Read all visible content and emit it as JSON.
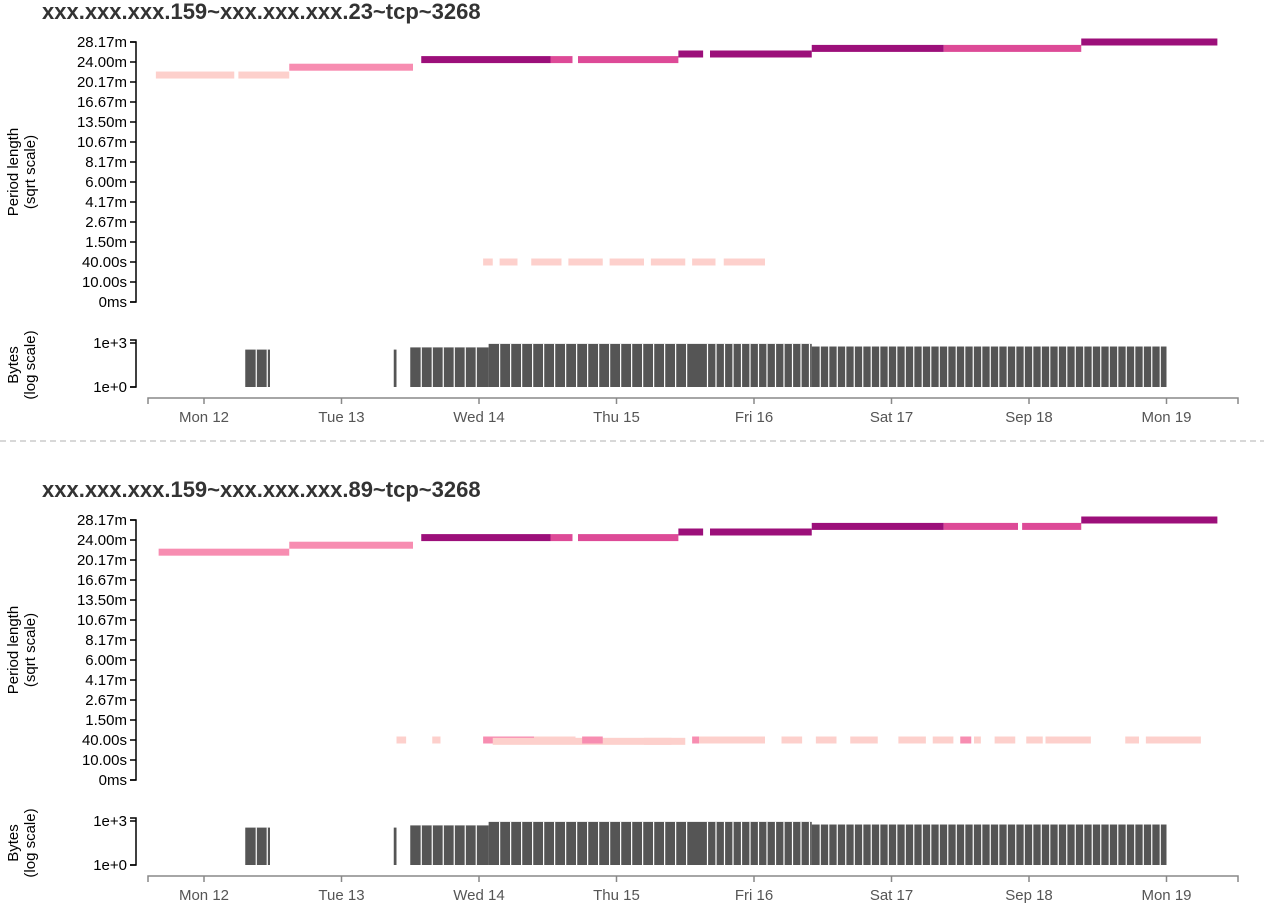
{
  "chart_data": [
    {
      "type": "timeline",
      "title": "xxx.xxx.xxx.159~xxx.xxx.xxx.23~tcp~3268",
      "period_axis": {
        "label_line1": "Period length",
        "label_line2": "(sqrt scale)",
        "scale": "sqrt",
        "ticks": [
          "0ms",
          "10.00s",
          "40.00s",
          "1.50m",
          "2.67m",
          "4.17m",
          "6.00m",
          "8.17m",
          "10.67m",
          "13.50m",
          "16.67m",
          "20.17m",
          "24.00m",
          "28.17m"
        ],
        "tick_seconds": [
          0,
          10,
          40,
          90,
          160,
          250,
          360,
          490,
          640,
          810,
          1000,
          1210,
          1440,
          1690
        ]
      },
      "bytes_axis": {
        "label_line1": "Bytes",
        "label_line2": "(log scale)",
        "scale": "log",
        "ticks": [
          "1e+0",
          "1e+3"
        ]
      },
      "time_axis": {
        "ticks": [
          "Mon 12",
          "Tue 13",
          "Wed 14",
          "Thu 15",
          "Fri 16",
          "Sat 17",
          "Sep 18",
          "Mon 19"
        ],
        "domain_days": [
          -0.55,
          7.4
        ]
      },
      "segments": [
        {
          "start": -0.35,
          "end": 0.22,
          "period_s": 1290,
          "color": "#fdd0cc"
        },
        {
          "start": 0.25,
          "end": 0.62,
          "period_s": 1290,
          "color": "#fdd0cc"
        },
        {
          "start": 0.62,
          "end": 1.52,
          "period_s": 1380,
          "color": "#f78db1"
        },
        {
          "start": 1.58,
          "end": 2.52,
          "period_s": 1470,
          "color": "#9c0f7a"
        },
        {
          "start": 2.52,
          "end": 2.68,
          "period_s": 1470,
          "color": "#dd4a97"
        },
        {
          "start": 2.72,
          "end": 3.45,
          "period_s": 1470,
          "color": "#dd4a97"
        },
        {
          "start": 3.45,
          "end": 3.63,
          "period_s": 1540,
          "color": "#9c0f7a"
        },
        {
          "start": 3.68,
          "end": 4.42,
          "period_s": 1540,
          "color": "#9c0f7a"
        },
        {
          "start": 4.42,
          "end": 5.38,
          "period_s": 1610,
          "color": "#9c0f7a"
        },
        {
          "start": 5.38,
          "end": 6.38,
          "period_s": 1610,
          "color": "#dd4a97"
        },
        {
          "start": 6.38,
          "end": 7.37,
          "period_s": 1690,
          "color": "#9c0f7a"
        },
        {
          "start": 2.03,
          "end": 2.1,
          "period_s": 40,
          "color": "#fdd0cc"
        },
        {
          "start": 2.15,
          "end": 2.28,
          "period_s": 40,
          "color": "#fdd0cc"
        },
        {
          "start": 2.38,
          "end": 2.6,
          "period_s": 40,
          "color": "#fdd0cc"
        },
        {
          "start": 2.65,
          "end": 2.9,
          "period_s": 40,
          "color": "#fdd0cc"
        },
        {
          "start": 2.95,
          "end": 3.2,
          "period_s": 40,
          "color": "#fdd0cc"
        },
        {
          "start": 3.25,
          "end": 3.5,
          "period_s": 40,
          "color": "#fdd0cc"
        },
        {
          "start": 3.55,
          "end": 3.72,
          "period_s": 40,
          "color": "#fdd0cc"
        },
        {
          "start": 3.78,
          "end": 4.08,
          "period_s": 40,
          "color": "#fdd0cc"
        }
      ],
      "bytes_blocks": [
        {
          "start": 0.3,
          "end": 0.48,
          "level": 0.85
        },
        {
          "start": 1.38,
          "end": 1.4,
          "level": 0.85
        },
        {
          "start": 1.5,
          "end": 2.07,
          "level": 0.9
        },
        {
          "start": 2.07,
          "end": 3.6,
          "level": 0.98
        },
        {
          "start": 3.6,
          "end": 4.42,
          "level": 0.98
        },
        {
          "start": 4.42,
          "end": 7.0,
          "level": 0.92
        }
      ]
    },
    {
      "type": "timeline",
      "title": "xxx.xxx.xxx.159~xxx.xxx.xxx.89~tcp~3268",
      "period_axis": {
        "label_line1": "Period length",
        "label_line2": "(sqrt scale)",
        "scale": "sqrt",
        "ticks": [
          "0ms",
          "10.00s",
          "40.00s",
          "1.50m",
          "2.67m",
          "4.17m",
          "6.00m",
          "8.17m",
          "10.67m",
          "13.50m",
          "16.67m",
          "20.17m",
          "24.00m",
          "28.17m"
        ],
        "tick_seconds": [
          0,
          10,
          40,
          90,
          160,
          250,
          360,
          490,
          640,
          810,
          1000,
          1210,
          1440,
          1690
        ]
      },
      "bytes_axis": {
        "label_line1": "Bytes",
        "label_line2": "(log scale)",
        "scale": "log",
        "ticks": [
          "1e+0",
          "1e+3"
        ]
      },
      "time_axis": {
        "ticks": [
          "Mon 12",
          "Tue 13",
          "Wed 14",
          "Thu 15",
          "Fri 16",
          "Sat 17",
          "Sep 18",
          "Mon 19"
        ],
        "domain_days": [
          -0.55,
          7.4
        ]
      },
      "segments": [
        {
          "start": -0.33,
          "end": 0.62,
          "period_s": 1300,
          "color": "#f78db1"
        },
        {
          "start": 0.62,
          "end": 1.52,
          "period_s": 1380,
          "color": "#f78db1"
        },
        {
          "start": 1.58,
          "end": 2.52,
          "period_s": 1470,
          "color": "#9c0f7a"
        },
        {
          "start": 2.52,
          "end": 2.68,
          "period_s": 1470,
          "color": "#dd4a97"
        },
        {
          "start": 2.72,
          "end": 3.45,
          "period_s": 1470,
          "color": "#dd4a97"
        },
        {
          "start": 3.45,
          "end": 3.63,
          "period_s": 1540,
          "color": "#9c0f7a"
        },
        {
          "start": 3.68,
          "end": 4.42,
          "period_s": 1540,
          "color": "#9c0f7a"
        },
        {
          "start": 4.42,
          "end": 5.38,
          "period_s": 1610,
          "color": "#9c0f7a"
        },
        {
          "start": 5.38,
          "end": 5.92,
          "period_s": 1610,
          "color": "#dd4a97"
        },
        {
          "start": 5.95,
          "end": 6.38,
          "period_s": 1610,
          "color": "#dd4a97"
        },
        {
          "start": 6.38,
          "end": 7.37,
          "period_s": 1690,
          "color": "#9c0f7a"
        },
        {
          "start": 1.4,
          "end": 1.47,
          "period_s": 40,
          "color": "#fdd0cc"
        },
        {
          "start": 1.66,
          "end": 1.72,
          "period_s": 40,
          "color": "#fdd0cc"
        },
        {
          "start": 2.03,
          "end": 2.7,
          "period_s": 40,
          "color": "#f78db1"
        },
        {
          "start": 2.1,
          "end": 3.4,
          "period_s": 38,
          "color": "#fdd0cc"
        },
        {
          "start": 2.4,
          "end": 2.7,
          "period_s": 40,
          "color": "#fdd0cc"
        },
        {
          "start": 2.75,
          "end": 2.9,
          "period_s": 40,
          "color": "#f78db1"
        },
        {
          "start": 3.55,
          "end": 3.9,
          "period_s": 40,
          "color": "#f78db1"
        },
        {
          "start": 3.2,
          "end": 3.5,
          "period_s": 38,
          "color": "#fdd0cc"
        },
        {
          "start": 3.6,
          "end": 4.08,
          "period_s": 40,
          "color": "#fdd0cc"
        },
        {
          "start": 4.2,
          "end": 4.35,
          "period_s": 40,
          "color": "#fdd0cc"
        },
        {
          "start": 4.45,
          "end": 4.6,
          "period_s": 40,
          "color": "#fdd0cc"
        },
        {
          "start": 4.7,
          "end": 4.9,
          "period_s": 40,
          "color": "#fdd0cc"
        },
        {
          "start": 5.05,
          "end": 5.25,
          "period_s": 40,
          "color": "#fdd0cc"
        },
        {
          "start": 5.3,
          "end": 5.45,
          "period_s": 40,
          "color": "#fdd0cc"
        },
        {
          "start": 5.5,
          "end": 5.58,
          "period_s": 40,
          "color": "#f78db1"
        },
        {
          "start": 5.6,
          "end": 5.65,
          "period_s": 40,
          "color": "#fdd0cc"
        },
        {
          "start": 5.75,
          "end": 5.9,
          "period_s": 40,
          "color": "#fdd0cc"
        },
        {
          "start": 5.98,
          "end": 6.1,
          "period_s": 40,
          "color": "#fdd0cc"
        },
        {
          "start": 6.12,
          "end": 6.45,
          "period_s": 40,
          "color": "#fdd0cc"
        },
        {
          "start": 6.7,
          "end": 6.8,
          "period_s": 40,
          "color": "#fdd0cc"
        },
        {
          "start": 6.85,
          "end": 7.25,
          "period_s": 40,
          "color": "#fdd0cc"
        }
      ],
      "bytes_blocks": [
        {
          "start": 0.3,
          "end": 0.48,
          "level": 0.85
        },
        {
          "start": 1.38,
          "end": 1.4,
          "level": 0.85
        },
        {
          "start": 1.5,
          "end": 2.07,
          "level": 0.9
        },
        {
          "start": 2.07,
          "end": 3.6,
          "level": 0.98
        },
        {
          "start": 3.6,
          "end": 4.42,
          "level": 0.98
        },
        {
          "start": 4.42,
          "end": 7.0,
          "level": 0.92
        }
      ]
    }
  ]
}
